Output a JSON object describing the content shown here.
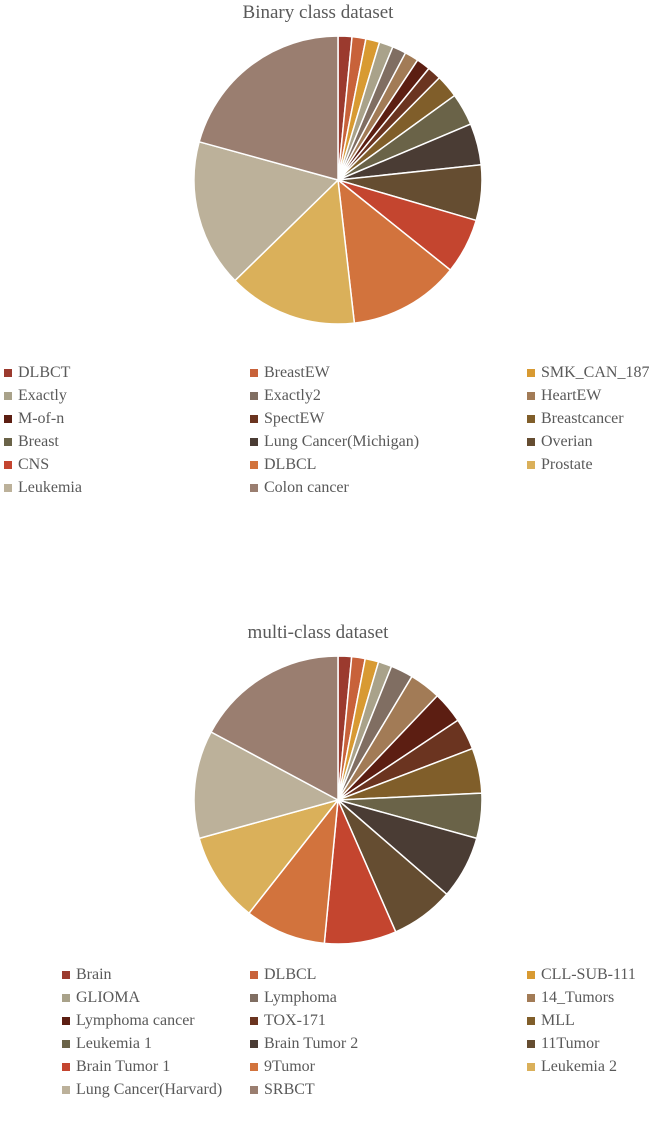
{
  "chart_data": [
    {
      "type": "pie",
      "title": "Binary class dataset",
      "legend_position": "bottom",
      "categories": [
        "DLBCT",
        "BreastEW",
        "SMK_CAN_187",
        "Exactly",
        "Exactly2",
        "HeartEW",
        "M-of-n",
        "SpectEW",
        "Breastcancer",
        "Breast",
        "Lung Cancer(Michigan)",
        "Overian",
        "CNS",
        "DLBCL",
        "Prostate",
        "Leukemia",
        "Colon cancer"
      ],
      "values": [
        1.5,
        1.5,
        1.5,
        1.5,
        1.5,
        1.5,
        1.5,
        1.5,
        2.5,
        3.5,
        4.5,
        6,
        6,
        12,
        14,
        16,
        20
      ],
      "colors": [
        "#9B3A2E",
        "#C8623A",
        "#D89A32",
        "#A9A28A",
        "#806E62",
        "#A27B56",
        "#5C1E12",
        "#6B3420",
        "#805E2A",
        "#6A6348",
        "#4A3C34",
        "#654D31",
        "#C4452F",
        "#D2733D",
        "#DAB05A",
        "#BCB19A",
        "#9A7E70"
      ]
    },
    {
      "type": "pie",
      "title": "multi-class dataset",
      "legend_position": "bottom",
      "categories": [
        "Brain",
        "DLBCL",
        "CLL-SUB-111",
        "GLIOMA",
        "Lymphoma",
        "14_Tumors",
        "Lymphoma cancer",
        "TOX-171",
        "MLL",
        "Leukemia 1",
        "Brain Tumor 2",
        "11Tumor",
        "Brain Tumor 1",
        "9Tumor",
        "Leukemia 2",
        "Lung Cancer(Harvard)",
        "SRBCT"
      ],
      "values": [
        1.5,
        1.5,
        1.5,
        1.5,
        2.5,
        3.5,
        3.5,
        3.5,
        5,
        5,
        7,
        7,
        8,
        9,
        10,
        12,
        17
      ],
      "colors": [
        "#9B3A2E",
        "#C8623A",
        "#D89A32",
        "#A9A28A",
        "#806E62",
        "#A27B56",
        "#5C1E12",
        "#6B3420",
        "#805E2A",
        "#6A6348",
        "#4A3C34",
        "#654D31",
        "#C4452F",
        "#D2733D",
        "#DAB05A",
        "#BCB19A",
        "#9A7E70"
      ]
    }
  ]
}
